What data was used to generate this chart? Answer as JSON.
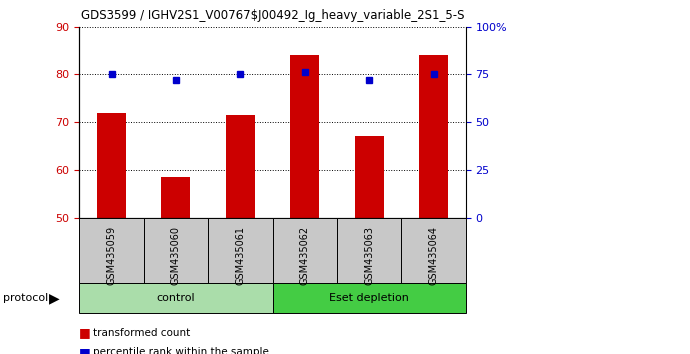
{
  "title": "GDS3599 / IGHV2S1_V00767$J00492_Ig_heavy_variable_2S1_5-S",
  "samples": [
    "GSM435059",
    "GSM435060",
    "GSM435061",
    "GSM435062",
    "GSM435063",
    "GSM435064"
  ],
  "red_values": [
    72.0,
    58.5,
    71.5,
    84.0,
    67.0,
    84.0
  ],
  "blue_values": [
    80.0,
    78.8,
    80.0,
    80.5,
    78.8,
    80.0
  ],
  "ylim_left": [
    50,
    90
  ],
  "ylim_right": [
    0,
    100
  ],
  "yticks_left": [
    50,
    60,
    70,
    80,
    90
  ],
  "yticks_right": [
    0,
    25,
    50,
    75,
    100
  ],
  "ytick_labels_right": [
    "0",
    "25",
    "50",
    "75",
    "100%"
  ],
  "red_color": "#CC0000",
  "blue_color": "#0000CC",
  "bar_width": 0.45,
  "groups": [
    {
      "label": "control",
      "samples": [
        0,
        1,
        2
      ],
      "color": "#AADDAA"
    },
    {
      "label": "Eset depletion",
      "samples": [
        3,
        4,
        5
      ],
      "color": "#44CC44"
    }
  ],
  "protocol_label": "protocol",
  "legend_red": "transformed count",
  "legend_blue": "percentile rank within the sample",
  "tick_label_color_left": "#CC0000",
  "tick_label_color_right": "#0000CC",
  "sample_box_color": "#C8C8C8",
  "figure_width": 6.9,
  "figure_height": 3.54
}
